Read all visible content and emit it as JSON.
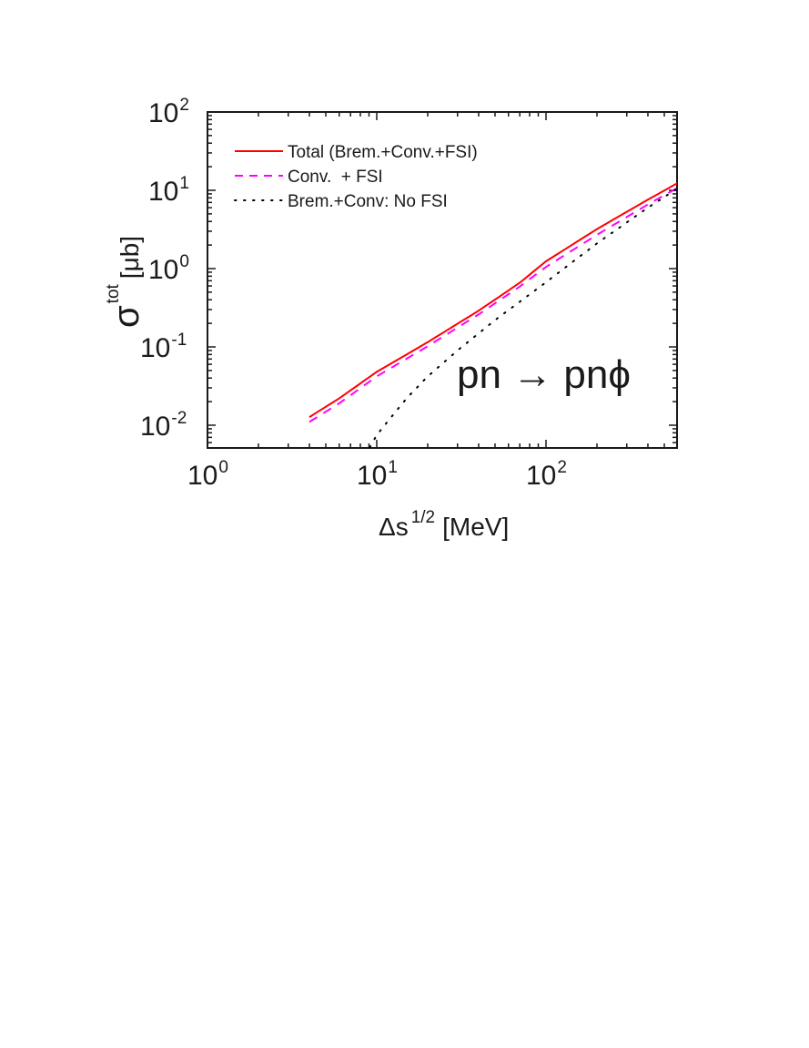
{
  "chart_data": {
    "type": "line",
    "title": "",
    "xlabel": "Δs^{1/2} [MeV]",
    "ylabel": "σ^{tot} [μb]",
    "xscale": "log",
    "yscale": "log",
    "xlim": [
      1,
      600
    ],
    "ylim": [
      0.005,
      100
    ],
    "grid": false,
    "legend_position": "upper left",
    "x_ticks": [
      {
        "base": "10",
        "exp": "0",
        "value": 1
      },
      {
        "base": "10",
        "exp": "1",
        "value": 10
      },
      {
        "base": "10",
        "exp": "2",
        "value": 100
      }
    ],
    "y_ticks": [
      {
        "base": "10",
        "exp": "2",
        "value": 100
      },
      {
        "base": "10",
        "exp": "1",
        "value": 10
      },
      {
        "base": "10",
        "exp": "0",
        "value": 1
      },
      {
        "base": "10",
        "exp": "-1",
        "value": 0.1
      },
      {
        "base": "10",
        "exp": "-2",
        "value": 0.01
      }
    ],
    "annotation": "pn → pnϕ",
    "series": [
      {
        "name": "Total (Brem.+Conv.+FSI)",
        "color": "#ff0000",
        "style": "solid",
        "x": [
          4,
          6,
          10,
          20,
          40,
          70,
          100,
          200,
          400,
          600
        ],
        "y": [
          0.0127,
          0.022,
          0.048,
          0.115,
          0.29,
          0.66,
          1.24,
          3.2,
          7.6,
          12.4
        ]
      },
      {
        "name": "Conv.  + FSI",
        "color": "#ff00ff",
        "style": "dashed",
        "x": [
          4,
          6,
          10,
          20,
          40,
          70,
          100,
          200,
          400,
          600
        ],
        "y": [
          0.011,
          0.019,
          0.042,
          0.102,
          0.26,
          0.59,
          1.05,
          2.7,
          6.6,
          10.8
        ]
      },
      {
        "name": "Brem.+Conv: No FSI",
        "color": "#000000",
        "style": "dotted",
        "x": [
          9.1,
          10,
          15,
          20,
          30,
          50,
          100,
          200,
          400,
          600
        ],
        "y": [
          0.0052,
          0.0075,
          0.022,
          0.042,
          0.09,
          0.22,
          0.67,
          2.1,
          6.0,
          10.6
        ]
      }
    ]
  },
  "legend": {
    "items": [
      {
        "label": "Total (Brem.+Conv.+FSI)"
      },
      {
        "label": "Conv.  + FSI"
      },
      {
        "label": "Brem.+Conv: No FSI"
      }
    ]
  },
  "axes": {
    "x_label_main": "Δs",
    "x_label_sup": "1/2",
    "x_label_unit": "[MeV]",
    "y_label_main": "σ",
    "y_label_sup": "tot",
    "y_label_unit": "[μb]"
  },
  "annotation": {
    "text": "pn → pnϕ"
  }
}
